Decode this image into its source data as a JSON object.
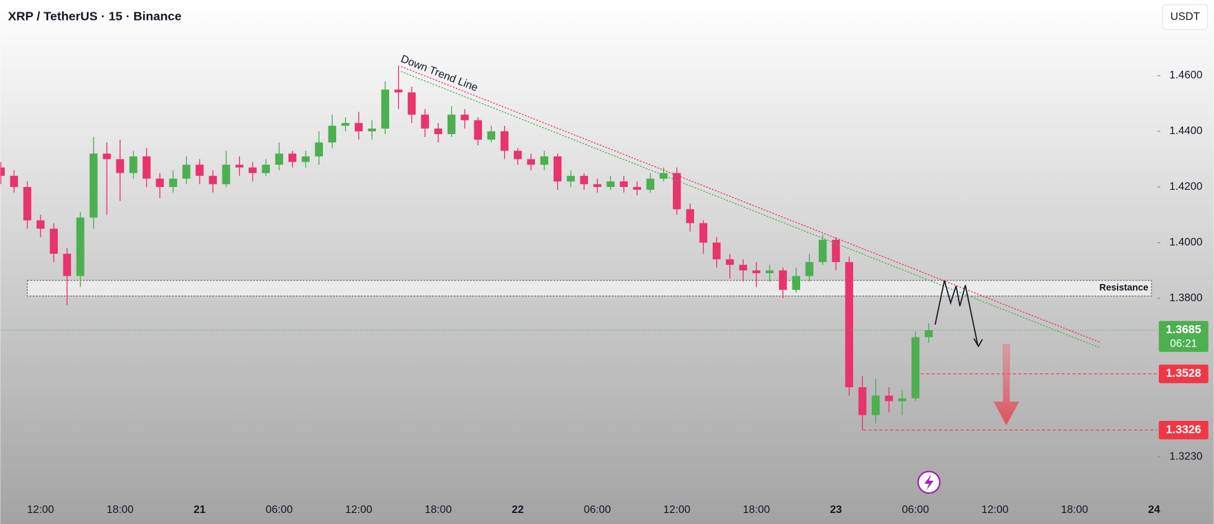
{
  "header": {
    "title": "XRP / TetherUS · 15 · Binance",
    "currency_button": "USDT"
  },
  "chart_data": {
    "type": "candlestick",
    "x": [
      9,
      10,
      11,
      12,
      13,
      14,
      15,
      16,
      17,
      18,
      19,
      20,
      21,
      22,
      23,
      24,
      25,
      26,
      27,
      28,
      29,
      30,
      31,
      32,
      33,
      34,
      35,
      36,
      37,
      38,
      39,
      40,
      41,
      42,
      43,
      44,
      45,
      46,
      47,
      48,
      49,
      50,
      51,
      52,
      53,
      54,
      55,
      56,
      57,
      58,
      59,
      60,
      61,
      62,
      63,
      64,
      65,
      66,
      67,
      68,
      69,
      70,
      71,
      72,
      73,
      74,
      75,
      76,
      77,
      78,
      79
    ],
    "open": [
      1.427,
      1.424,
      1.42,
      1.408,
      1.405,
      1.396,
      1.388,
      1.409,
      1.432,
      1.43,
      1.425,
      1.431,
      1.423,
      1.42,
      1.423,
      1.428,
      1.424,
      1.421,
      1.428,
      1.427,
      1.425,
      1.428,
      1.432,
      1.429,
      1.431,
      1.436,
      1.442,
      1.443,
      1.44,
      1.441,
      1.455,
      1.454,
      1.446,
      1.441,
      1.439,
      1.446,
      1.444,
      1.437,
      1.44,
      1.433,
      1.43,
      1.428,
      1.431,
      1.422,
      1.424,
      1.421,
      1.42,
      1.422,
      1.42,
      1.419,
      1.423,
      1.425,
      1.412,
      1.407,
      1.4,
      1.394,
      1.392,
      1.39,
      1.389,
      1.39,
      1.383,
      1.388,
      1.393,
      1.401,
      1.393,
      1.348,
      1.338,
      1.345,
      1.343,
      1.344,
      1.366
    ],
    "high": [
      1.429,
      1.426,
      1.422,
      1.41,
      1.407,
      1.398,
      1.411,
      1.438,
      1.436,
      1.437,
      1.433,
      1.434,
      1.425,
      1.426,
      1.431,
      1.43,
      1.426,
      1.433,
      1.431,
      1.429,
      1.43,
      1.436,
      1.433,
      1.433,
      1.44,
      1.446,
      1.445,
      1.447,
      1.444,
      1.458,
      1.4636,
      1.456,
      1.448,
      1.443,
      1.449,
      1.448,
      1.445,
      1.442,
      1.442,
      1.434,
      1.432,
      1.433,
      1.432,
      1.426,
      1.425,
      1.423,
      1.424,
      1.424,
      1.422,
      1.425,
      1.427,
      1.427,
      1.414,
      1.408,
      1.402,
      1.396,
      1.394,
      1.393,
      1.392,
      1.391,
      1.391,
      1.396,
      1.403,
      1.402,
      1.395,
      1.352,
      1.351,
      1.348,
      1.347,
      1.368,
      1.371
    ],
    "low": [
      1.421,
      1.418,
      1.405,
      1.402,
      1.393,
      1.3775,
      1.384,
      1.405,
      1.41,
      1.415,
      1.423,
      1.42,
      1.416,
      1.418,
      1.421,
      1.421,
      1.418,
      1.42,
      1.424,
      1.422,
      1.424,
      1.426,
      1.427,
      1.427,
      1.428,
      1.434,
      1.44,
      1.437,
      1.437,
      1.439,
      1.448,
      1.443,
      1.438,
      1.436,
      1.438,
      1.441,
      1.435,
      1.436,
      1.43,
      1.428,
      1.426,
      1.426,
      1.419,
      1.42,
      1.419,
      1.418,
      1.419,
      1.418,
      1.417,
      1.418,
      1.422,
      1.41,
      1.404,
      1.396,
      1.391,
      1.387,
      1.386,
      1.384,
      1.386,
      1.38,
      1.382,
      1.386,
      1.392,
      1.39,
      1.345,
      1.3326,
      1.335,
      1.339,
      1.338,
      1.343,
      1.364
    ],
    "close": [
      1.424,
      1.42,
      1.408,
      1.405,
      1.396,
      1.388,
      1.409,
      1.432,
      1.43,
      1.425,
      1.431,
      1.423,
      1.42,
      1.423,
      1.428,
      1.424,
      1.421,
      1.428,
      1.427,
      1.425,
      1.428,
      1.432,
      1.429,
      1.431,
      1.436,
      1.442,
      1.443,
      1.44,
      1.441,
      1.455,
      1.454,
      1.446,
      1.441,
      1.439,
      1.446,
      1.444,
      1.437,
      1.44,
      1.433,
      1.43,
      1.428,
      1.431,
      1.422,
      1.424,
      1.421,
      1.42,
      1.422,
      1.42,
      1.419,
      1.423,
      1.425,
      1.412,
      1.407,
      1.4,
      1.394,
      1.392,
      1.39,
      1.389,
      1.39,
      1.383,
      1.388,
      1.393,
      1.401,
      1.393,
      1.348,
      1.338,
      1.345,
      1.343,
      1.344,
      1.366,
      1.3685
    ],
    "up_color": "#4caf50",
    "down_color": "#e8336d",
    "xlim": [
      8.96,
      96.24
    ],
    "xticks": [
      {
        "value": 12,
        "label": "12:00"
      },
      {
        "value": 18,
        "label": "18:00"
      },
      {
        "value": 24,
        "label": "21"
      },
      {
        "value": 30,
        "label": "06:00"
      },
      {
        "value": 36,
        "label": "12:00"
      },
      {
        "value": 42,
        "label": "18:00"
      },
      {
        "value": 48,
        "label": "22"
      },
      {
        "value": 54,
        "label": "06:00"
      },
      {
        "value": 60,
        "label": "12:00"
      },
      {
        "value": 66,
        "label": "18:00"
      },
      {
        "value": 72,
        "label": "23"
      },
      {
        "value": 78,
        "label": "06:00"
      },
      {
        "value": 84,
        "label": "12:00"
      },
      {
        "value": 90,
        "label": "18:00"
      },
      {
        "value": 96,
        "label": "24"
      }
    ],
    "ylim": [
      1.3094,
      1.4761
    ],
    "yticks": [
      {
        "value": 1.46,
        "label": "1.4600"
      },
      {
        "value": 1.44,
        "label": "1.4400"
      },
      {
        "value": 1.42,
        "label": "1.4200"
      },
      {
        "value": 1.4,
        "label": "1.4000"
      },
      {
        "value": 1.38,
        "label": "1.3800"
      },
      {
        "value": 1.323,
        "label": "1.3230"
      }
    ],
    "trendlines": [
      {
        "label": "Down Trend Line",
        "color": "#e8336d",
        "x": [
          39.2,
          91.9
        ],
        "y": [
          1.4633,
          1.3642
        ]
      },
      {
        "color": "#4caf50",
        "x": [
          39.2,
          91.9
        ],
        "y": [
          1.4615,
          1.3622
        ]
      }
    ],
    "resistance": {
      "label": "Resistance",
      "x": [
        11.0,
        95.8
      ],
      "y": [
        1.3808,
        1.3864
      ]
    },
    "price_labels": [
      {
        "value": 1.3685,
        "countdown": "06:21",
        "color": "#4caf50",
        "line_from": 8.96
      },
      {
        "value": 1.3528,
        "color": "#f23645",
        "line_from": 78.4
      },
      {
        "value": 1.3326,
        "color": "#f23645",
        "line_from": 74.05
      }
    ]
  }
}
